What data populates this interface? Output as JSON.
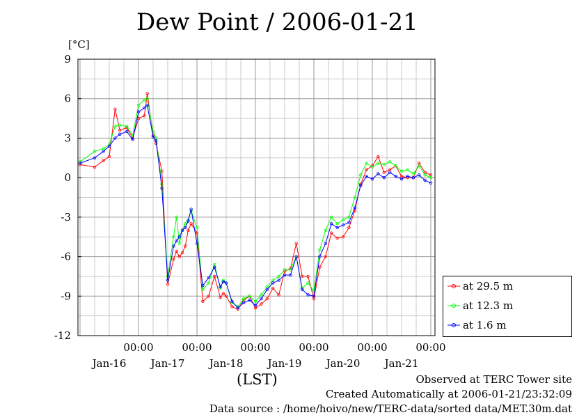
{
  "chart_data": {
    "type": "line",
    "title": "Dew Point / 2006-01-21",
    "ylabel": "[°C]",
    "xlabel": "(LST)",
    "ylim": [
      -12,
      9
    ],
    "yticks": [
      "9",
      "6",
      "3",
      "0",
      "-3",
      "-6",
      "-9",
      "-12"
    ],
    "xlim": [
      0,
      6
    ],
    "xticks": [
      {
        "time": "00:00",
        "date": "Jan-16"
      },
      {
        "time": "00:00",
        "date": "Jan-17"
      },
      {
        "time": "00:00",
        "date": "Jan-18"
      },
      {
        "time": "00:00",
        "date": "Jan-19"
      },
      {
        "time": "00:00",
        "date": "Jan-20"
      },
      {
        "time": "00:00",
        "date": "Jan-21"
      }
    ],
    "grid": true,
    "legend_position": "bottom-right, outside plot",
    "series": [
      {
        "name": "at 29.5 m",
        "color": "#ff0000",
        "x": [
          0,
          0.25,
          0.4,
          0.5,
          0.6,
          0.68,
          0.8,
          0.9,
          1.0,
          1.1,
          1.15,
          1.25,
          1.3,
          1.4,
          1.5,
          1.6,
          1.65,
          1.7,
          1.75,
          1.8,
          1.85,
          1.9,
          2.0,
          2.1,
          2.2,
          2.3,
          2.4,
          2.45,
          2.5,
          2.6,
          2.7,
          2.8,
          2.9,
          3.0,
          3.1,
          3.2,
          3.3,
          3.4,
          3.5,
          3.6,
          3.7,
          3.8,
          3.9,
          4.0,
          4.1,
          4.2,
          4.3,
          4.4,
          4.5,
          4.6,
          4.7,
          4.8,
          4.9,
          5.0,
          5.1,
          5.2,
          5.3,
          5.4,
          5.5,
          5.6,
          5.7,
          5.8,
          5.9,
          6.0
        ],
        "values": [
          1.0,
          0.8,
          1.3,
          1.6,
          5.2,
          3.6,
          3.8,
          3.0,
          4.5,
          4.7,
          6.4,
          3.2,
          2.6,
          0.5,
          -8.1,
          -6.2,
          -5.6,
          -6.0,
          -5.7,
          -5.2,
          -4.0,
          -3.5,
          -4.2,
          -9.4,
          -9.0,
          -7.5,
          -9.1,
          -8.8,
          -9.0,
          -9.8,
          -10.0,
          -9.3,
          -9.0,
          -9.9,
          -9.6,
          -9.2,
          -8.4,
          -8.9,
          -7.1,
          -6.9,
          -5.0,
          -7.5,
          -7.5,
          -9.2,
          -6.8,
          -6.0,
          -4.2,
          -4.6,
          -4.5,
          -3.8,
          -2.5,
          -0.5,
          0.6,
          0.9,
          1.6,
          0.4,
          0.6,
          0.9,
          0.1,
          0.0,
          0.0,
          1.1,
          0.4,
          0.2
        ]
      },
      {
        "name": "at 12.3 m",
        "color": "#00ff00",
        "x": [
          0,
          0.25,
          0.4,
          0.5,
          0.6,
          0.68,
          0.8,
          0.9,
          1.0,
          1.1,
          1.15,
          1.25,
          1.3,
          1.4,
          1.5,
          1.6,
          1.65,
          1.7,
          1.75,
          1.8,
          1.85,
          1.9,
          2.0,
          2.1,
          2.2,
          2.3,
          2.4,
          2.45,
          2.5,
          2.6,
          2.7,
          2.8,
          2.9,
          3.0,
          3.1,
          3.2,
          3.3,
          3.4,
          3.5,
          3.6,
          3.7,
          3.8,
          3.9,
          4.0,
          4.1,
          4.2,
          4.3,
          4.4,
          4.5,
          4.6,
          4.7,
          4.8,
          4.9,
          5.0,
          5.1,
          5.2,
          5.3,
          5.4,
          5.5,
          5.6,
          5.7,
          5.8,
          5.9,
          6.0
        ],
        "values": [
          1.2,
          2.0,
          2.2,
          2.5,
          3.9,
          4.0,
          3.9,
          3.2,
          5.5,
          5.9,
          6.0,
          3.5,
          3.0,
          -0.5,
          -7.5,
          -4.5,
          -3.0,
          -5.0,
          -4.0,
          -3.5,
          -3.2,
          -2.5,
          -3.8,
          -8.5,
          -8.0,
          -6.6,
          -8.4,
          -7.8,
          -8.0,
          -9.5,
          -9.8,
          -9.2,
          -9.0,
          -9.4,
          -8.9,
          -8.3,
          -7.8,
          -7.5,
          -7.0,
          -7.0,
          -6.0,
          -8.4,
          -8.0,
          -8.6,
          -5.5,
          -4.0,
          -3.0,
          -3.5,
          -3.2,
          -3.0,
          -1.5,
          0.2,
          1.1,
          0.8,
          1.1,
          1.0,
          1.2,
          0.9,
          0.5,
          0.6,
          0.3,
          0.9,
          0.2,
          0.0
        ]
      },
      {
        "name": "at 1.6 m",
        "color": "#0000ff",
        "x": [
          0,
          0.25,
          0.4,
          0.5,
          0.6,
          0.68,
          0.8,
          0.9,
          1.0,
          1.1,
          1.15,
          1.25,
          1.3,
          1.4,
          1.5,
          1.6,
          1.65,
          1.7,
          1.75,
          1.8,
          1.85,
          1.9,
          2.0,
          2.1,
          2.2,
          2.3,
          2.4,
          2.45,
          2.5,
          2.6,
          2.7,
          2.8,
          2.9,
          3.0,
          3.1,
          3.2,
          3.3,
          3.4,
          3.5,
          3.6,
          3.7,
          3.8,
          3.9,
          4.0,
          4.1,
          4.2,
          4.3,
          4.4,
          4.5,
          4.6,
          4.7,
          4.8,
          4.9,
          5.0,
          5.1,
          5.2,
          5.3,
          5.4,
          5.5,
          5.6,
          5.7,
          5.8,
          5.9,
          6.0
        ],
        "values": [
          1.1,
          1.5,
          2.0,
          2.4,
          3.0,
          3.3,
          3.5,
          2.9,
          5.0,
          5.3,
          5.5,
          3.1,
          2.8,
          -0.8,
          -7.8,
          -5.2,
          -4.8,
          -4.5,
          -4.0,
          -3.8,
          -3.3,
          -2.4,
          -5.0,
          -8.2,
          -7.6,
          -6.8,
          -8.3,
          -7.9,
          -8.0,
          -9.4,
          -9.9,
          -9.5,
          -9.3,
          -9.7,
          -9.2,
          -8.5,
          -8.0,
          -7.8,
          -7.4,
          -7.4,
          -6.0,
          -8.5,
          -8.9,
          -9.0,
          -6.0,
          -5.0,
          -3.5,
          -3.8,
          -3.6,
          -3.4,
          -2.3,
          -0.6,
          0.1,
          -0.1,
          0.3,
          0.0,
          0.4,
          0.1,
          -0.1,
          0.1,
          0.0,
          0.2,
          -0.2,
          -0.4
        ]
      }
    ]
  },
  "footer": {
    "observed": "Observed at TERC Tower site",
    "created": "Created Automatically at 2006-01-21/23:32:09",
    "source": "Data source : /home/hoivo/new/TERC-data/sorted  data/MET.30m.dat"
  }
}
